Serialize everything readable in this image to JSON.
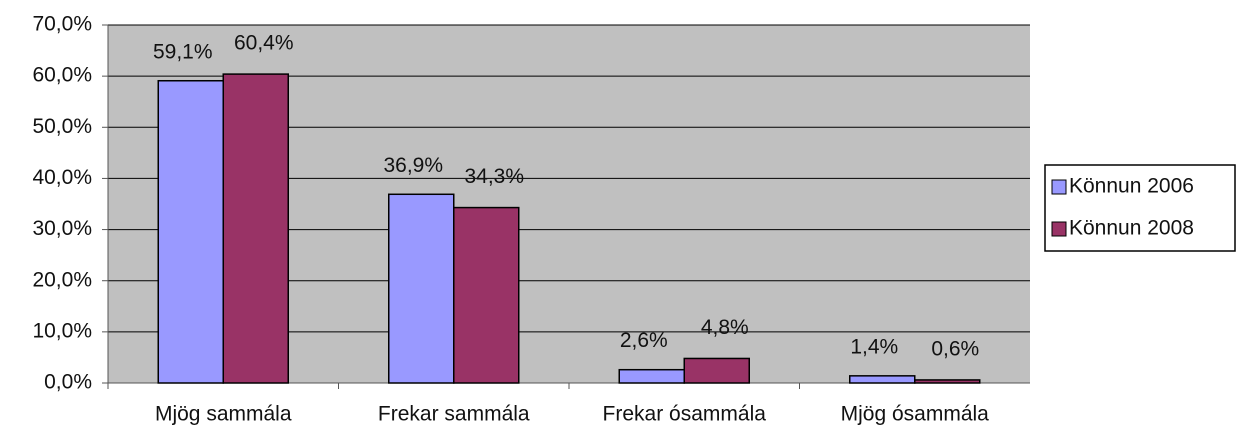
{
  "chart_data": {
    "type": "bar",
    "categories": [
      "Mjög sammála",
      "Frekar sammála",
      "Frekar ósammála",
      "Mjög ósammála"
    ],
    "series": [
      {
        "name": "Könnun 2006",
        "color": "#9999ff",
        "values": [
          59.1,
          36.9,
          2.6,
          1.4
        ],
        "value_labels": [
          "59,1%",
          "36,9%",
          "2,6%",
          "1,4%"
        ]
      },
      {
        "name": "Könnun 2008",
        "color": "#993366",
        "values": [
          60.4,
          34.3,
          4.8,
          0.6
        ],
        "value_labels": [
          "60,4%",
          "34,3%",
          "4,8%",
          "0,6%"
        ]
      }
    ],
    "ylim": [
      0,
      70
    ],
    "yticks": [
      {
        "value": 0,
        "label": "0,0%"
      },
      {
        "value": 10,
        "label": "10,0%"
      },
      {
        "value": 20,
        "label": "20,0%"
      },
      {
        "value": 30,
        "label": "30,0%"
      },
      {
        "value": 40,
        "label": "40,0%"
      },
      {
        "value": 50,
        "label": "50,0%"
      },
      {
        "value": 60,
        "label": "60,0%"
      },
      {
        "value": 70,
        "label": "70,0%"
      }
    ],
    "grid": true,
    "legend": "right"
  }
}
